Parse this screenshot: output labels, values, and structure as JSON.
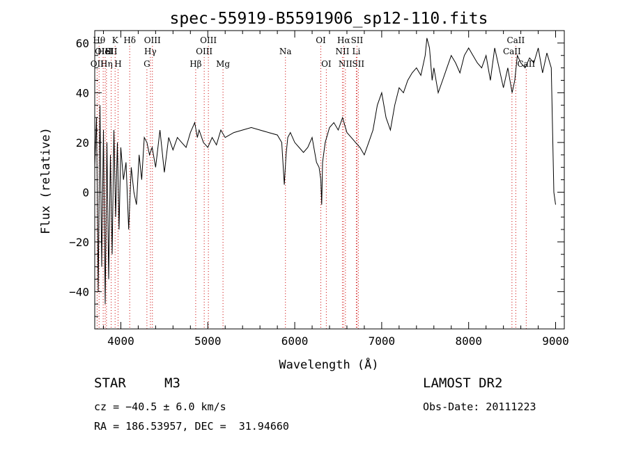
{
  "chart_data": {
    "type": "line",
    "title": "spec-55919-B5591906_sp12-110.fits",
    "xlabel": "Wavelength (Å)",
    "ylabel": "Flux (relative)",
    "xlim": [
      3700,
      9100
    ],
    "ylim": [
      -55,
      65
    ],
    "x_ticks": [
      4000,
      5000,
      6000,
      7000,
      8000,
      9000
    ],
    "x_tick_labels": [
      "4000",
      "5000",
      "6000",
      "7000",
      "8000",
      "9000"
    ],
    "y_ticks": [
      -40,
      -20,
      0,
      20,
      40,
      60
    ],
    "y_tick_labels": [
      "−40",
      "−20",
      "0",
      "20",
      "40",
      "60"
    ],
    "grid": false,
    "legend": "none",
    "line_color": "#000000",
    "marker_color": "#cc0000",
    "series": [
      {
        "x": [
          3700,
          3720,
          3740,
          3760,
          3780,
          3800,
          3820,
          3840,
          3860,
          3880,
          3900,
          3920,
          3940,
          3960,
          3980,
          4000,
          4030,
          4060,
          4090,
          4120,
          4150,
          4180,
          4210,
          4240,
          4270,
          4300,
          4330,
          4360,
          4400,
          4450,
          4500,
          4550,
          4600,
          4650,
          4700,
          4750,
          4800,
          4850,
          4880,
          4900,
          4950,
          5000,
          5050,
          5100,
          5150,
          5200,
          5300,
          5400,
          5500,
          5600,
          5700,
          5800,
          5850,
          5880,
          5900,
          5920,
          5950,
          6000,
          6050,
          6100,
          6150,
          6200,
          6250,
          6280,
          6300,
          6310,
          6320,
          6350,
          6400,
          6450,
          6500,
          6550,
          6600,
          6650,
          6700,
          6750,
          6800,
          6850,
          6900,
          6950,
          7000,
          7050,
          7100,
          7150,
          7200,
          7250,
          7300,
          7350,
          7400,
          7450,
          7500,
          7520,
          7550,
          7580,
          7600,
          7650,
          7700,
          7750,
          7800,
          7850,
          7900,
          7950,
          8000,
          8050,
          8100,
          8150,
          8200,
          8250,
          8300,
          8350,
          8400,
          8450,
          8500,
          8530,
          8560,
          8600,
          8650,
          8700,
          8750,
          8800,
          8850,
          8900,
          8950,
          8980,
          9000
        ],
        "y": [
          10,
          30,
          -40,
          35,
          -30,
          25,
          -45,
          20,
          -35,
          15,
          -25,
          25,
          -10,
          20,
          -15,
          18,
          5,
          12,
          -15,
          10,
          0,
          -5,
          15,
          5,
          22,
          20,
          15,
          18,
          10,
          25,
          8,
          22,
          17,
          22,
          20,
          18,
          24,
          28,
          22,
          25,
          20,
          18,
          22,
          19,
          25,
          22,
          24,
          25,
          26,
          25,
          24,
          23,
          20,
          3,
          15,
          22,
          24,
          20,
          18,
          16,
          18,
          22,
          12,
          10,
          5,
          -5,
          12,
          20,
          26,
          28,
          25,
          30,
          24,
          22,
          20,
          18,
          15,
          20,
          25,
          35,
          40,
          30,
          25,
          35,
          42,
          40,
          45,
          48,
          50,
          47,
          55,
          62,
          58,
          45,
          50,
          40,
          45,
          50,
          55,
          52,
          48,
          55,
          58,
          55,
          52,
          50,
          55,
          45,
          58,
          50,
          42,
          50,
          40,
          45,
          55,
          52,
          50,
          54,
          52,
          58,
          48,
          56,
          50,
          0,
          -5
        ]
      }
    ],
    "line_markers": [
      {
        "x": 3727,
        "label": "OII",
        "row": 3
      },
      {
        "x": 3750,
        "label": "Hθ",
        "row": 1
      },
      {
        "x": 3797,
        "label": "OIII",
        "row": 2
      },
      {
        "x": 3820,
        "label": "HeI",
        "row": 2
      },
      {
        "x": 3835,
        "label": "Hη",
        "row": 3
      },
      {
        "x": 3889,
        "label": "SII",
        "row": 2
      },
      {
        "x": 3934,
        "label": "K",
        "row": 1
      },
      {
        "x": 3968,
        "label": "H",
        "row": 3
      },
      {
        "x": 4102,
        "label": "Hδ",
        "row": 1
      },
      {
        "x": 4300,
        "label": "G",
        "row": 3
      },
      {
        "x": 4340,
        "label": "Hγ",
        "row": 2
      },
      {
        "x": 4363,
        "label": "OIII",
        "row": 1
      },
      {
        "x": 4861,
        "label": "Hβ",
        "row": 3
      },
      {
        "x": 4959,
        "label": "OIII",
        "row": 2
      },
      {
        "x": 5007,
        "label": "OIII",
        "row": 1
      },
      {
        "x": 5175,
        "label": "Mg",
        "row": 3
      },
      {
        "x": 5893,
        "label": "Na",
        "row": 2
      },
      {
        "x": 6300,
        "label": "OI",
        "row": 1
      },
      {
        "x": 6363,
        "label": "OI",
        "row": 3
      },
      {
        "x": 6548,
        "label": "NII",
        "row": 2
      },
      {
        "x": 6563,
        "label": "Hα",
        "row": 1
      },
      {
        "x": 6583,
        "label": "NII",
        "row": 3
      },
      {
        "x": 6708,
        "label": "Li",
        "row": 2
      },
      {
        "x": 6716,
        "label": "SII",
        "row": 1
      },
      {
        "x": 6731,
        "label": "SII",
        "row": 3
      },
      {
        "x": 8498,
        "label": "CaII",
        "row": 2
      },
      {
        "x": 8542,
        "label": "CaII",
        "row": 1
      },
      {
        "x": 8662,
        "label": "CaII",
        "row": 3
      }
    ]
  },
  "info": {
    "object_class": "STAR",
    "subclass": "M3",
    "survey": "LAMOST DR2",
    "velocity": "cz = −40.5 ± 6.0 km/s",
    "obs_date": "Obs-Date: 20111223",
    "coords": "RA = 186.53957, DEC =  31.94660"
  }
}
